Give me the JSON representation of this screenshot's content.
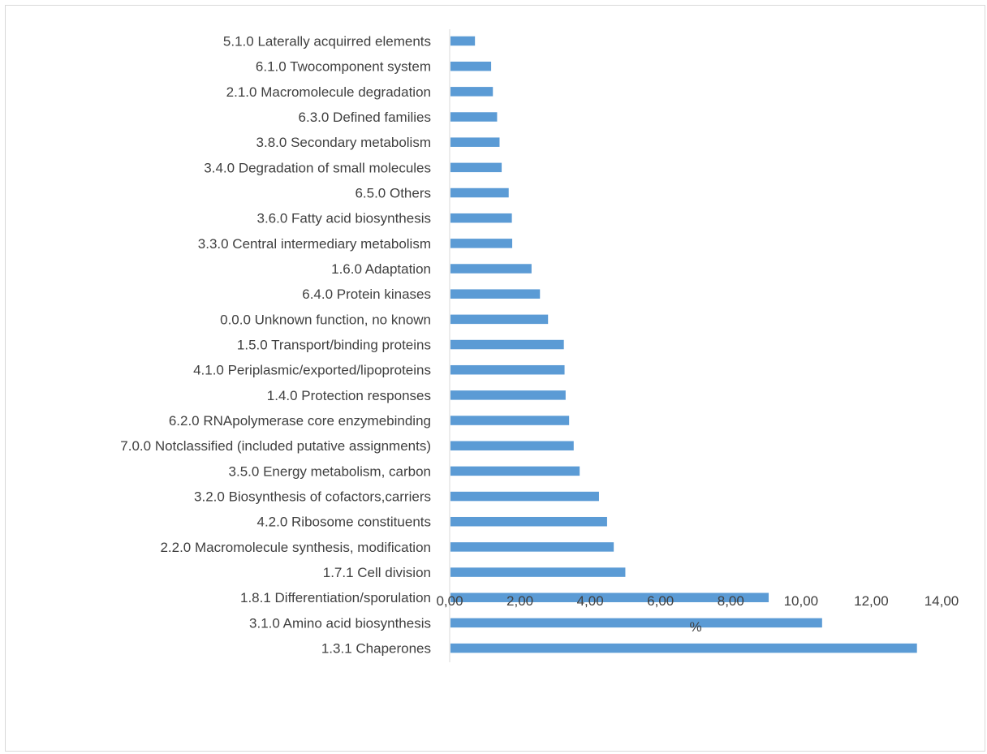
{
  "chart_data": {
    "type": "bar",
    "orientation": "horizontal",
    "categories": [
      "5.1.0   Laterally acquirred elements",
      "6.1.0   Twocomponent system",
      "2.1.0   Macromolecule degradation",
      "6.3.0   Defined families",
      "3.8.0   Secondary metabolism",
      "3.4.0   Degradation of small molecules",
      "6.5.0   Others",
      "3.6.0   Fatty acid biosynthesis",
      "3.3.0   Central intermediary metabolism",
      "1.6.0   Adaptation",
      "6.4.0   Protein kinases",
      "0.0.0   Unknown function, no known",
      "1.5.0   Transport/binding proteins",
      "4.1.0   Periplasmic/exported/lipoproteins",
      "1.4.0   Protection responses",
      "6.2.0   RNApolymerase core enzymebinding",
      "7.0.0   Notclassified (included putative assignments)",
      "3.5.0   Energy metabolism, carbon",
      "3.2.0   Biosynthesis of cofactors,carriers",
      "4.2.0   Ribosome constituents",
      "2.2.0   Macromolecule synthesis, modification",
      "1.7.1   Cell division",
      "1.8.1   Differentiation/sporulation",
      "3.1.0   Amino acid biosynthesis",
      "1.3.1   Chaperones"
    ],
    "values": [
      0.72,
      1.18,
      1.23,
      1.35,
      1.42,
      1.48,
      1.68,
      1.77,
      1.78,
      2.33,
      2.57,
      2.8,
      3.25,
      3.27,
      3.3,
      3.4,
      3.53,
      3.7,
      4.25,
      4.48,
      4.67,
      5.0,
      9.08,
      10.6,
      13.3
    ],
    "xlabel": "%",
    "xlim": [
      0,
      14
    ],
    "xticks": [
      "0,00",
      "2,00",
      "4,00",
      "6,00",
      "8,00",
      "10,00",
      "12,00",
      "14,00"
    ],
    "bar_color": "#5b9bd5",
    "grid": false,
    "legend": "none"
  }
}
